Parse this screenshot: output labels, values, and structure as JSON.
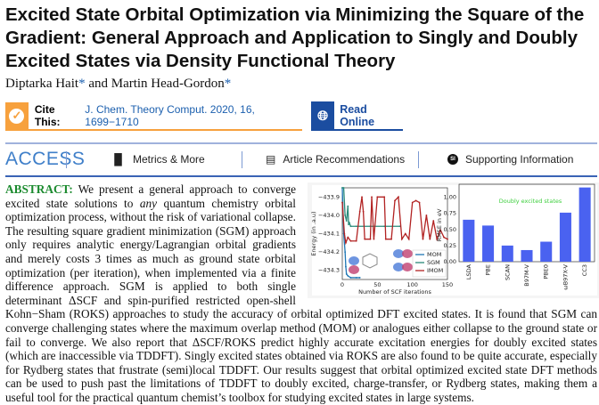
{
  "title": "Excited State Orbital Optimization via Minimizing the Square of the Gradient: General Approach and Application to Singly and Doubly Excited States via Density Functional Theory",
  "authors": [
    {
      "name": "Diptarka Hait",
      "mark": "*"
    },
    {
      "name": "Martin Head-Gordon",
      "mark": "*"
    }
  ],
  "authors_joiner": " and ",
  "cite": {
    "label": "Cite This:",
    "reference": "J. Chem. Theory Comput. 2020, 16, 1699−1710",
    "icon": "check-icon"
  },
  "read_online": {
    "label": "Read Online",
    "icon": "globe-icon"
  },
  "access_bar": {
    "access": "ACCESS",
    "metrics": "Metrics & More",
    "recommendations": "Article Recommendations",
    "supporting": "Supporting Information",
    "si_badge": "SI"
  },
  "abstract": {
    "label": "ABSTRACT:",
    "p1": " We present a general approach to converge excited state solutions to ",
    "em": "any",
    "p2": " quantum chemistry orbital optimization process, without the risk of variational collapse. The resulting square gradient minimization (SGM) approach only requires analytic energy/Lagrangian orbital gradients and merely costs 3 times as much as ground state orbital optimization (per iteration), when implemented via a finite difference approach. SGM is applied to both single determinant ΔSCF and spin-purified restricted open-shell Kohn−Sham (ROKS) approaches to study the accuracy of orbital optimized DFT excited states. It is found that SGM can converge challenging states where the maximum overlap method (MOM) or analogues either collapse to the ground state or fail to converge. We also report that ΔSCF/ROKS predict highly accurate excitation energies for doubly excited states (which are inaccessible via TDDFT). Singly excited states obtained via ROKS are also found to be quite accurate, especially for Rydberg states that frustrate (semi)local TDDFT. Our results suggest that orbital optimized excited state DFT methods can be used to push past the limitations of TDDFT to doubly excited, charge-transfer, or Rydberg states, making them a useful tool for the practical quantum chemist’s toolbox for studying excited states in large systems."
  },
  "chart_data": [
    {
      "type": "line",
      "title": "",
      "xlabel": "Number of SCF iterations",
      "ylabel": "Energy (in .a.u)",
      "xlim": [
        0,
        150
      ],
      "ylim": [
        -434.35,
        -433.85
      ],
      "xticks": [
        "0",
        "50",
        "100",
        "150"
      ],
      "yticks": [
        "−433.9",
        "−434.0",
        "−434.1",
        "−434.2",
        "−434.3"
      ],
      "legend_position": "bottom-right",
      "series": [
        {
          "name": "MOM",
          "color": "#1f77b4",
          "x": [
            0,
            2,
            4,
            5,
            6,
            8,
            12,
            20,
            25
          ],
          "y": [
            -433.85,
            -434.1,
            -434.2,
            -434.28,
            -434.32,
            -434.33,
            -434.34,
            -434.34,
            -434.34
          ]
        },
        {
          "name": "SGM",
          "color": "#2a8a7a",
          "x": [
            0,
            2,
            4,
            6,
            8,
            9,
            10,
            12,
            20,
            40,
            60,
            82
          ],
          "y": [
            -433.85,
            -433.85,
            -434.0,
            -434.03,
            -433.95,
            -434.05,
            -434.04,
            -434.06,
            -434.06,
            -434.06,
            -434.06,
            -434.06
          ]
        },
        {
          "name": "IMOM",
          "color": "#b22222",
          "x": [
            0,
            3,
            5,
            8,
            12,
            20,
            25,
            28,
            30,
            32,
            40,
            42,
            45,
            50,
            60,
            62,
            70,
            75,
            80,
            85,
            90,
            95,
            100,
            105,
            110,
            115,
            120,
            125,
            130,
            135,
            140,
            145,
            150
          ],
          "y": [
            -433.93,
            -434.1,
            -434.15,
            -434.12,
            -434.14,
            -434.14,
            -433.98,
            -433.9,
            -433.98,
            -434.13,
            -434.13,
            -433.9,
            -434.13,
            -433.9,
            -433.9,
            -434.13,
            -434.13,
            -433.92,
            -433.9,
            -434.13,
            -434.1,
            -434.13,
            -433.93,
            -433.92,
            -433.93,
            -434.13,
            -434.0,
            -434.13,
            -434.03,
            -434.13,
            -434.08,
            -434.12,
            -434.13
          ]
        }
      ]
    },
    {
      "type": "bar",
      "title": "",
      "annotation": "Doubly excited states",
      "annotation_color": "#3ecf3e",
      "xlabel": "",
      "ylabel": "RMSE in eV",
      "ylim": [
        0,
        1.2
      ],
      "yticks": [
        "0.00",
        "0.25",
        "0.50",
        "0.75",
        "1.00"
      ],
      "bar_color": "#4a62f0",
      "categories": [
        "LSDA",
        "PBE",
        "SCAN",
        "B97M-V",
        "PBE0",
        "ωB97X-V",
        "CC3"
      ],
      "values": [
        0.65,
        0.56,
        0.25,
        0.18,
        0.31,
        0.76,
        1.15
      ]
    }
  ]
}
